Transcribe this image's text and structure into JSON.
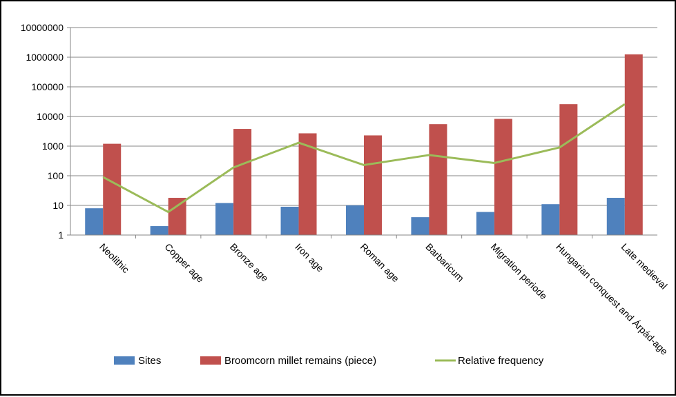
{
  "chart_data": {
    "type": "bar",
    "title": "",
    "xlabel": "",
    "ylabel": "",
    "y_scale": "log",
    "ylim": [
      1,
      10000000
    ],
    "y_ticks": [
      "1",
      "10",
      "100",
      "1000",
      "10000",
      "100000",
      "1000000",
      "10000000"
    ],
    "grid": true,
    "legend_position": "bottom",
    "categories": [
      "Neolithic",
      "Copper age",
      "Bronze age",
      "Iron age",
      "Roman age",
      "Barbaricum",
      "Migration periode",
      "Hungarian conquest and Árpád-age",
      "Late medieval"
    ],
    "series": [
      {
        "name": "Sites",
        "type": "bar",
        "color": "#4f81bd",
        "values": [
          8,
          2,
          12,
          9,
          10,
          4,
          6,
          11,
          18
        ]
      },
      {
        "name": "Broomcorn millet remains (piece)",
        "type": "bar",
        "color": "#c0504d",
        "values": [
          1200,
          18,
          3800,
          2700,
          2300,
          5500,
          8300,
          26000,
          1250000
        ]
      },
      {
        "name": "Relative frequency",
        "type": "line",
        "color": "#9bbb59",
        "values": [
          90,
          6,
          190,
          1300,
          230,
          500,
          270,
          900,
          26000
        ]
      }
    ]
  }
}
